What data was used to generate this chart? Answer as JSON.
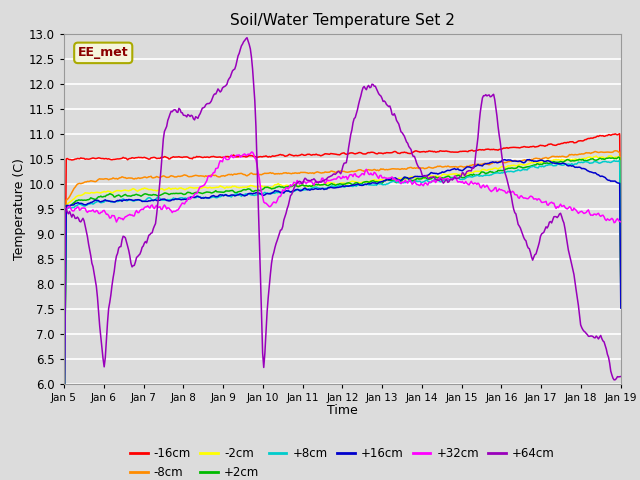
{
  "title": "Soil/Water Temperature Set 2",
  "xlabel": "Time",
  "ylabel": "Temperature (C)",
  "ylim": [
    6.0,
    13.0
  ],
  "yticks": [
    6.0,
    6.5,
    7.0,
    7.5,
    8.0,
    8.5,
    9.0,
    9.5,
    10.0,
    10.5,
    11.0,
    11.5,
    12.0,
    12.5,
    13.0
  ],
  "background_color": "#dcdcdc",
  "annotation_label": "EE_met",
  "annotation_color": "#8b0000",
  "annotation_bg": "#f5f5dc",
  "series": [
    {
      "label": "-16cm",
      "color": "#ff0000"
    },
    {
      "label": "-8cm",
      "color": "#ff8c00"
    },
    {
      "label": "-2cm",
      "color": "#ffff00"
    },
    {
      "label": "+2cm",
      "color": "#00bb00"
    },
    {
      "label": "+8cm",
      "color": "#00cccc"
    },
    {
      "label": "+16cm",
      "color": "#0000cc"
    },
    {
      "label": "+32cm",
      "color": "#ff00ff"
    },
    {
      "label": "+64cm",
      "color": "#9900bb"
    }
  ],
  "xtick_labels": [
    "Jan 5",
    "Jan 6",
    "Jan 7",
    "Jan 8",
    "Jan 9",
    "Jan 10",
    "Jan 11",
    "Jan 12",
    "Jan 13",
    "Jan 14",
    "Jan 15",
    "Jan 16",
    "Jan 17",
    "Jan 18",
    "Jan 19"
  ],
  "num_points": 500,
  "figsize": [
    6.4,
    4.8
  ],
  "dpi": 100
}
